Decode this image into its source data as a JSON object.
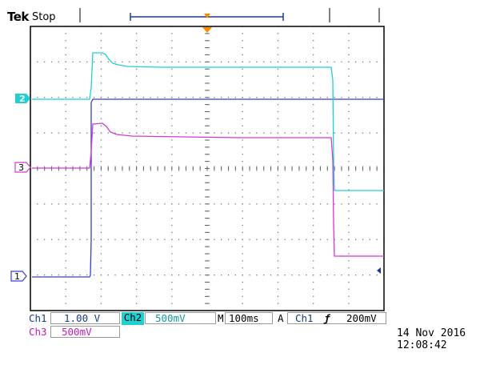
{
  "header": {
    "brand": "Tek",
    "run_state": "Stop"
  },
  "channel_markers": {
    "ch2": "2",
    "ch3": "3",
    "ch1": "1"
  },
  "colors": {
    "ch1": "#3a3adc",
    "ch2": "#20d0d0",
    "ch3": "#d23ad2",
    "trigger": "#ff8a00"
  },
  "readouts": {
    "ch1_label": "Ch1",
    "ch1_scale": "1.00 V",
    "ch2_label": "Ch2",
    "ch2_scale": "500mV",
    "ch3_label": "Ch3",
    "ch3_scale": "500mV",
    "time_label": "M",
    "time_scale": "100ms",
    "trig_mode": "A",
    "trig_source": "Ch1",
    "trig_slope": "ƒ",
    "trig_level": "200mV"
  },
  "timestamp": {
    "date": "14 Nov 2016",
    "time": "12:08:42"
  }
}
